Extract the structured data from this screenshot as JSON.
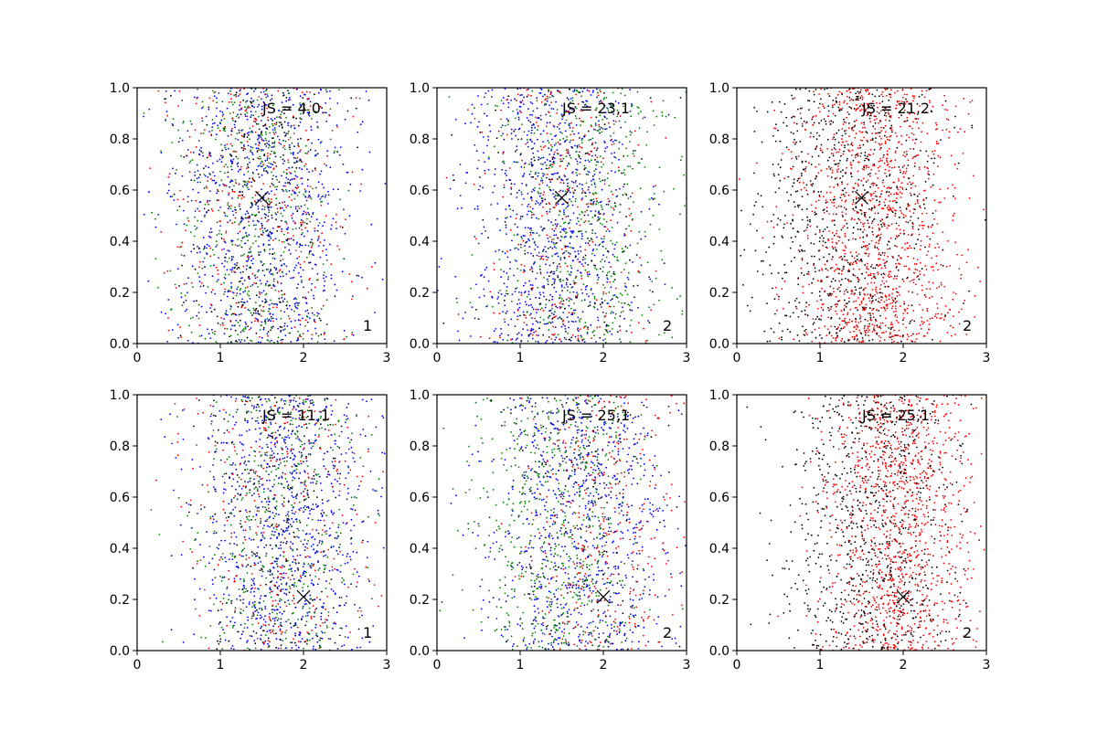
{
  "chart_data": [
    {
      "type": "scatter",
      "annotation": "JS = 4,0",
      "panel_label": "1",
      "marker": {
        "x": 1.5,
        "y": 0.57
      },
      "xlim": [
        0,
        3
      ],
      "ylim": [
        0,
        1
      ],
      "xticks": [
        "0",
        "1",
        "2",
        "3"
      ],
      "yticks": [
        "0.0",
        "0.2",
        "0.4",
        "0.6",
        "0.8",
        "1.0"
      ],
      "series": [
        {
          "color": "#0000ff",
          "count": 900,
          "mean_x": 1.5,
          "sd_x": 0.55
        },
        {
          "color": "#008000",
          "count": 500,
          "mean_x": 1.45,
          "sd_x": 0.5
        },
        {
          "color": "#ff0000",
          "count": 350,
          "mean_x": 1.5,
          "sd_x": 0.55
        },
        {
          "color": "#000000",
          "count": 250,
          "mean_x": 1.45,
          "sd_x": 0.45
        }
      ]
    },
    {
      "type": "scatter",
      "annotation": "JS = 23,1",
      "panel_label": "2",
      "marker": {
        "x": 1.5,
        "y": 0.57
      },
      "xlim": [
        0,
        3
      ],
      "ylim": [
        0,
        1
      ],
      "xticks": [
        "0",
        "1",
        "2",
        "3"
      ],
      "yticks": [
        "0.0",
        "0.2",
        "0.4",
        "0.6",
        "0.8",
        "1.0"
      ],
      "series": [
        {
          "color": "#0000ff",
          "count": 900,
          "mean_x": 1.35,
          "sd_x": 0.5
        },
        {
          "color": "#008000",
          "count": 550,
          "mean_x": 1.8,
          "sd_x": 0.55
        },
        {
          "color": "#ff0000",
          "count": 300,
          "mean_x": 1.55,
          "sd_x": 0.5
        },
        {
          "color": "#000000",
          "count": 200,
          "mean_x": 1.6,
          "sd_x": 0.5
        }
      ]
    },
    {
      "type": "scatter",
      "annotation": "JS = 21,2",
      "panel_label": "2",
      "marker": {
        "x": 1.5,
        "y": 0.57
      },
      "xlim": [
        0,
        3
      ],
      "ylim": [
        0,
        1
      ],
      "xticks": [
        "0",
        "1",
        "2",
        "3"
      ],
      "yticks": [
        "0.0",
        "0.2",
        "0.4",
        "0.6",
        "0.8",
        "1.0"
      ],
      "series": [
        {
          "color": "#ff0000",
          "count": 1300,
          "mean_x": 1.7,
          "sd_x": 0.5
        },
        {
          "color": "#000000",
          "count": 800,
          "mean_x": 1.3,
          "sd_x": 0.55
        }
      ]
    },
    {
      "type": "scatter",
      "annotation": "JS = 11,1",
      "panel_label": "1",
      "marker": {
        "x": 2.0,
        "y": 0.21
      },
      "xlim": [
        0,
        3
      ],
      "ylim": [
        0,
        1
      ],
      "xticks": [
        "0",
        "1",
        "2",
        "3"
      ],
      "yticks": [
        "0.0",
        "0.2",
        "0.4",
        "0.6",
        "0.8",
        "1.0"
      ],
      "series": [
        {
          "color": "#0000ff",
          "count": 900,
          "mean_x": 1.75,
          "sd_x": 0.55
        },
        {
          "color": "#008000",
          "count": 450,
          "mean_x": 1.7,
          "sd_x": 0.5
        },
        {
          "color": "#ff0000",
          "count": 300,
          "mean_x": 1.75,
          "sd_x": 0.55
        },
        {
          "color": "#000000",
          "count": 250,
          "mean_x": 1.7,
          "sd_x": 0.5
        }
      ]
    },
    {
      "type": "scatter",
      "annotation": "JS = 25,1",
      "panel_label": "2",
      "marker": {
        "x": 2.0,
        "y": 0.21
      },
      "xlim": [
        0,
        3
      ],
      "ylim": [
        0,
        1
      ],
      "xticks": [
        "0",
        "1",
        "2",
        "3"
      ],
      "yticks": [
        "0.0",
        "0.2",
        "0.4",
        "0.6",
        "0.8",
        "1.0"
      ],
      "series": [
        {
          "color": "#0000ff",
          "count": 850,
          "mean_x": 1.75,
          "sd_x": 0.55
        },
        {
          "color": "#008000",
          "count": 600,
          "mean_x": 1.4,
          "sd_x": 0.5
        },
        {
          "color": "#ff0000",
          "count": 350,
          "mean_x": 2.05,
          "sd_x": 0.45
        },
        {
          "color": "#000000",
          "count": 150,
          "mean_x": 1.7,
          "sd_x": 0.5
        }
      ]
    },
    {
      "type": "scatter",
      "annotation": "JS = 25,1",
      "panel_label": "2",
      "marker": {
        "x": 2.0,
        "y": 0.21
      },
      "xlim": [
        0,
        3
      ],
      "ylim": [
        0,
        1
      ],
      "xticks": [
        "0",
        "1",
        "2",
        "3"
      ],
      "yticks": [
        "0.0",
        "0.2",
        "0.4",
        "0.6",
        "0.8",
        "1.0"
      ],
      "series": [
        {
          "color": "#ff0000",
          "count": 1200,
          "mean_x": 1.95,
          "sd_x": 0.45
        },
        {
          "color": "#000000",
          "count": 800,
          "mean_x": 1.65,
          "sd_x": 0.55
        }
      ]
    }
  ]
}
